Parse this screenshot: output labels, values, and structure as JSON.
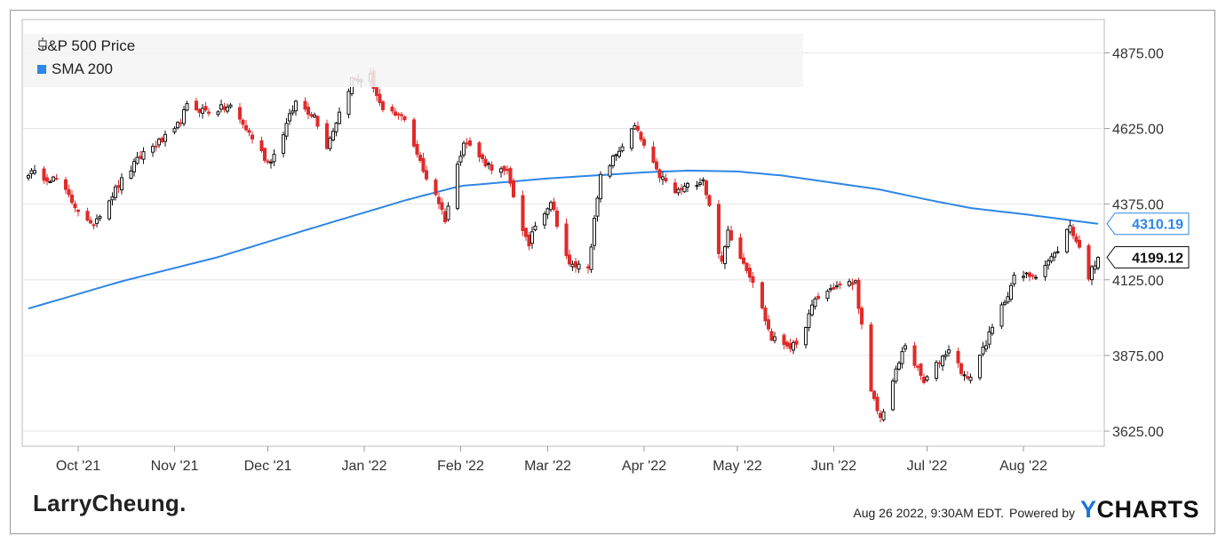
{
  "chart_data": {
    "type": "candlestick",
    "series": [
      {
        "name": "S&P 500 Price",
        "kind": "candlestick"
      },
      {
        "name": "SMA 200",
        "kind": "line"
      }
    ],
    "x_tick_labels": [
      "Oct '21",
      "Nov '21",
      "Dec '21",
      "Jan '22",
      "Feb '22",
      "Mar '22",
      "Apr '22",
      "May '22",
      "Jun '22",
      "Jul '22",
      "Aug '22"
    ],
    "y_tick_labels": [
      "4875.00",
      "4625.00",
      "4375.00",
      "4125.00",
      "3875.00",
      "3625.00"
    ],
    "ylim": [
      3575,
      4985
    ],
    "price_path": [
      [
        "2021-09-15",
        4480
      ],
      [
        "2021-09-24",
        4455
      ],
      [
        "2021-10-01",
        4357
      ],
      [
        "2021-10-05",
        4300
      ],
      [
        "2021-10-14",
        4438
      ],
      [
        "2021-10-22",
        4545
      ],
      [
        "2021-11-01",
        4613
      ],
      [
        "2021-11-05",
        4697
      ],
      [
        "2021-11-12",
        4682
      ],
      [
        "2021-11-19",
        4697
      ],
      [
        "2021-11-26",
        4595
      ],
      [
        "2021-12-01",
        4513
      ],
      [
        "2021-12-03",
        4538
      ],
      [
        "2021-12-10",
        4712
      ],
      [
        "2021-12-16",
        4668
      ],
      [
        "2021-12-20",
        4568
      ],
      [
        "2021-12-28",
        4786
      ],
      [
        "2022-01-03",
        4796
      ],
      [
        "2022-01-07",
        4677
      ],
      [
        "2022-01-14",
        4662
      ],
      [
        "2022-01-20",
        4482
      ],
      [
        "2022-01-24",
        4410
      ],
      [
        "2022-01-27",
        4326
      ],
      [
        "2022-02-02",
        4589
      ],
      [
        "2022-02-08",
        4521
      ],
      [
        "2022-02-10",
        4504
      ],
      [
        "2022-02-16",
        4475
      ],
      [
        "2022-02-23",
        4225
      ],
      [
        "2022-02-24",
        4288
      ],
      [
        "2022-03-02",
        4386
      ],
      [
        "2022-03-08",
        4170
      ],
      [
        "2022-03-14",
        4173
      ],
      [
        "2022-03-18",
        4463
      ],
      [
        "2022-03-29",
        4631
      ],
      [
        "2022-04-05",
        4481
      ],
      [
        "2022-04-11",
        4413
      ],
      [
        "2022-04-20",
        4460
      ],
      [
        "2022-04-26",
        4175
      ],
      [
        "2022-04-28",
        4288
      ],
      [
        "2022-05-06",
        4123
      ],
      [
        "2022-05-12",
        3930
      ],
      [
        "2022-05-20",
        3901
      ],
      [
        "2022-05-26",
        4058
      ],
      [
        "2022-06-01",
        4101
      ],
      [
        "2022-06-08",
        4116
      ],
      [
        "2022-06-13",
        3750
      ],
      [
        "2022-06-16",
        3667
      ],
      [
        "2022-06-24",
        3912
      ],
      [
        "2022-06-30",
        3785
      ],
      [
        "2022-07-08",
        3899
      ],
      [
        "2022-07-14",
        3790
      ],
      [
        "2022-07-22",
        3962
      ],
      [
        "2022-07-29",
        4130
      ],
      [
        "2022-08-05",
        4145
      ],
      [
        "2022-08-11",
        4207
      ],
      [
        "2022-08-16",
        4305
      ],
      [
        "2022-08-19",
        4228
      ],
      [
        "2022-08-22",
        4138
      ],
      [
        "2022-08-25",
        4199
      ]
    ],
    "sma_path": [
      [
        "2021-09-15",
        4030
      ],
      [
        "2021-10-15",
        4120
      ],
      [
        "2021-11-15",
        4200
      ],
      [
        "2021-12-15",
        4295
      ],
      [
        "2022-01-15",
        4390
      ],
      [
        "2022-02-01",
        4435
      ],
      [
        "2022-03-01",
        4460
      ],
      [
        "2022-04-01",
        4480
      ],
      [
        "2022-04-15",
        4486
      ],
      [
        "2022-05-01",
        4483
      ],
      [
        "2022-05-15",
        4470
      ],
      [
        "2022-06-01",
        4445
      ],
      [
        "2022-06-15",
        4425
      ],
      [
        "2022-07-01",
        4390
      ],
      [
        "2022-07-15",
        4362
      ],
      [
        "2022-08-01",
        4342
      ],
      [
        "2022-08-25",
        4310
      ]
    ],
    "last_price_label": "4199.12",
    "last_sma_label": "4310.19",
    "colors": {
      "up": "#111111",
      "down": "#e02b2b",
      "sma": "#2e86e6"
    }
  },
  "legend": {
    "price_label": "S&P 500 Price",
    "sma_label": "SMA 200"
  },
  "brand": "LarryCheung.",
  "footer": {
    "timestamp": "Aug 26 2022, 9:30AM EDT.",
    "powered_by": "Powered by",
    "ycharts_y": "Y",
    "ycharts_rest": "CHARTS"
  }
}
